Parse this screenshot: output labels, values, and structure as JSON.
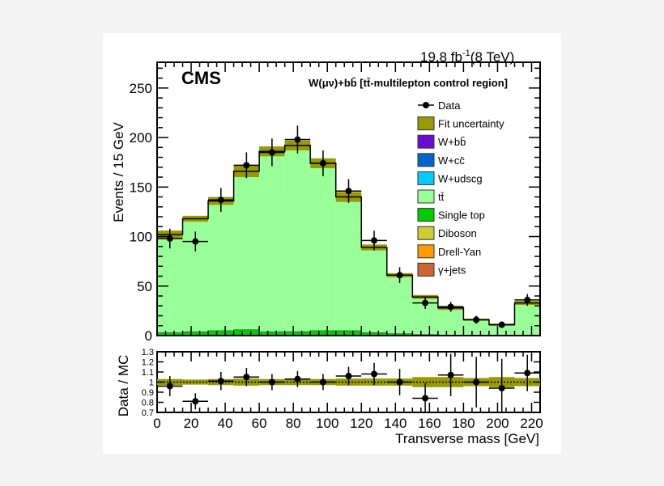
{
  "chart_data": {
    "type": "bar",
    "experiment_label": "CMS",
    "luminosity": "19.8 fb",
    "luminosity_sup": "-1",
    "energy": "(8 TeV)",
    "title": "W(μν)+bb̄ [tt̄-multilepton control region]",
    "xlabel": "Transverse mass [GeV]",
    "ylabel": "Events / 15 GeV",
    "ratio_ylabel": "Data / MC",
    "xlim": [
      0,
      225
    ],
    "ylim": [
      0,
      276
    ],
    "ratio_ylim": [
      0.7,
      1.3
    ],
    "bin_edges": [
      0,
      15,
      30,
      45,
      60,
      75,
      90,
      105,
      120,
      135,
      150,
      165,
      180,
      195,
      210,
      225
    ],
    "x_ticks": [
      0,
      20,
      40,
      60,
      80,
      100,
      120,
      140,
      160,
      180,
      200,
      220
    ],
    "y_ticks": [
      0,
      50,
      100,
      150,
      200,
      250
    ],
    "ratio_y_ticks": [
      "0.7",
      "0.8",
      "0.9",
      "1",
      "1.1",
      "1.2",
      "1.3"
    ],
    "legend_position": "top-right",
    "legend": [
      {
        "label": "Data",
        "kind": "marker",
        "color": "#000000"
      },
      {
        "label": "Fit uncertainty",
        "kind": "box",
        "color": "#999900"
      },
      {
        "label": "W+bb̄",
        "kind": "box",
        "color": "#6a0dcc"
      },
      {
        "label": "W+cc̄",
        "kind": "box",
        "color": "#0066cc"
      },
      {
        "label": "W+udscg",
        "kind": "box",
        "color": "#00ccff"
      },
      {
        "label": "tt̄",
        "kind": "box",
        "color": "#99ff99"
      },
      {
        "label": "Single top",
        "kind": "box",
        "color": "#00cc00"
      },
      {
        "label": "Diboson",
        "kind": "box",
        "color": "#cccc33"
      },
      {
        "label": "Drell-Yan",
        "kind": "box",
        "color": "#ff9900"
      },
      {
        "label": "γ+jets",
        "kind": "box",
        "color": "#cc6633"
      }
    ],
    "series": [
      {
        "name": "Single top",
        "values": [
          3,
          4,
          5,
          6,
          4,
          4,
          5,
          5,
          3,
          2,
          1,
          0,
          0,
          0,
          0
        ]
      },
      {
        "name": "tt̄",
        "values": [
          99,
          114,
          131,
          160,
          182,
          188,
          169,
          135,
          86,
          59,
          38,
          28,
          16,
          11,
          33
        ]
      },
      {
        "name": "Fit uncertainty",
        "values": [
          4,
          3,
          4,
          6,
          5,
          5,
          5,
          5,
          3,
          2,
          2,
          2,
          1,
          1,
          2
        ]
      },
      {
        "name": "Data",
        "values": [
          98,
          95,
          137,
          172,
          185,
          198,
          174,
          146,
          96,
          61,
          33,
          29,
          16,
          11,
          36
        ],
        "errors": [
          10,
          10,
          12,
          13,
          14,
          14,
          13,
          12,
          10,
          8,
          6,
          5,
          4,
          3,
          6
        ]
      }
    ],
    "ratio": {
      "values": [
        0.96,
        0.81,
        1.01,
        1.05,
        1.0,
        1.03,
        1.0,
        1.06,
        1.08,
        1.0,
        0.84,
        1.07,
        1.0,
        0.94,
        1.09
      ],
      "errors": [
        0.1,
        0.08,
        0.09,
        0.09,
        0.08,
        0.08,
        0.08,
        0.09,
        0.11,
        0.13,
        0.15,
        0.21,
        0.25,
        0.29,
        0.18
      ],
      "band": [
        0.03,
        0.025,
        0.03,
        0.035,
        0.03,
        0.03,
        0.03,
        0.035,
        0.035,
        0.035,
        0.05,
        0.05,
        0.04,
        0.05,
        0.04
      ]
    }
  }
}
